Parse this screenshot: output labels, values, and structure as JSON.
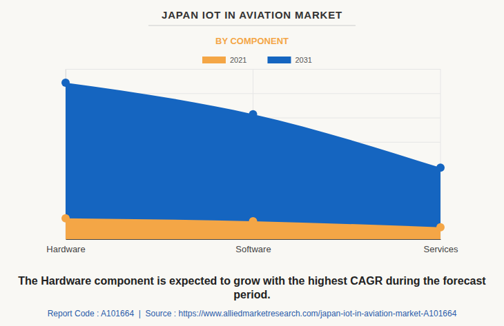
{
  "chart_data": {
    "type": "area",
    "title": "JAPAN IOT IN AVIATION MARKET",
    "subtitle": "BY COMPONENT",
    "categories": [
      "Hardware",
      "Software",
      "Services"
    ],
    "series": [
      {
        "name": "2021",
        "color": "#f4a646",
        "values": [
          0.86,
          0.74,
          0.49
        ]
      },
      {
        "name": "2031",
        "color": "#1565c0",
        "values": [
          6.43,
          5.14,
          2.94
        ]
      }
    ],
    "ylim": [
      0,
      7
    ],
    "yticks": [
      0,
      1,
      2,
      3,
      4,
      5,
      6,
      7
    ],
    "grid": true,
    "tick_labels": "x",
    "marker": "circle",
    "legend": "top",
    "caption": "The Hardware component is expected to grow with the highest CAGR during the forecast period.",
    "source": "Report Code : A101664  |  Source : https://www.alliedmarketresearch.com/japan-iot-in-aviation-market-A101664"
  }
}
